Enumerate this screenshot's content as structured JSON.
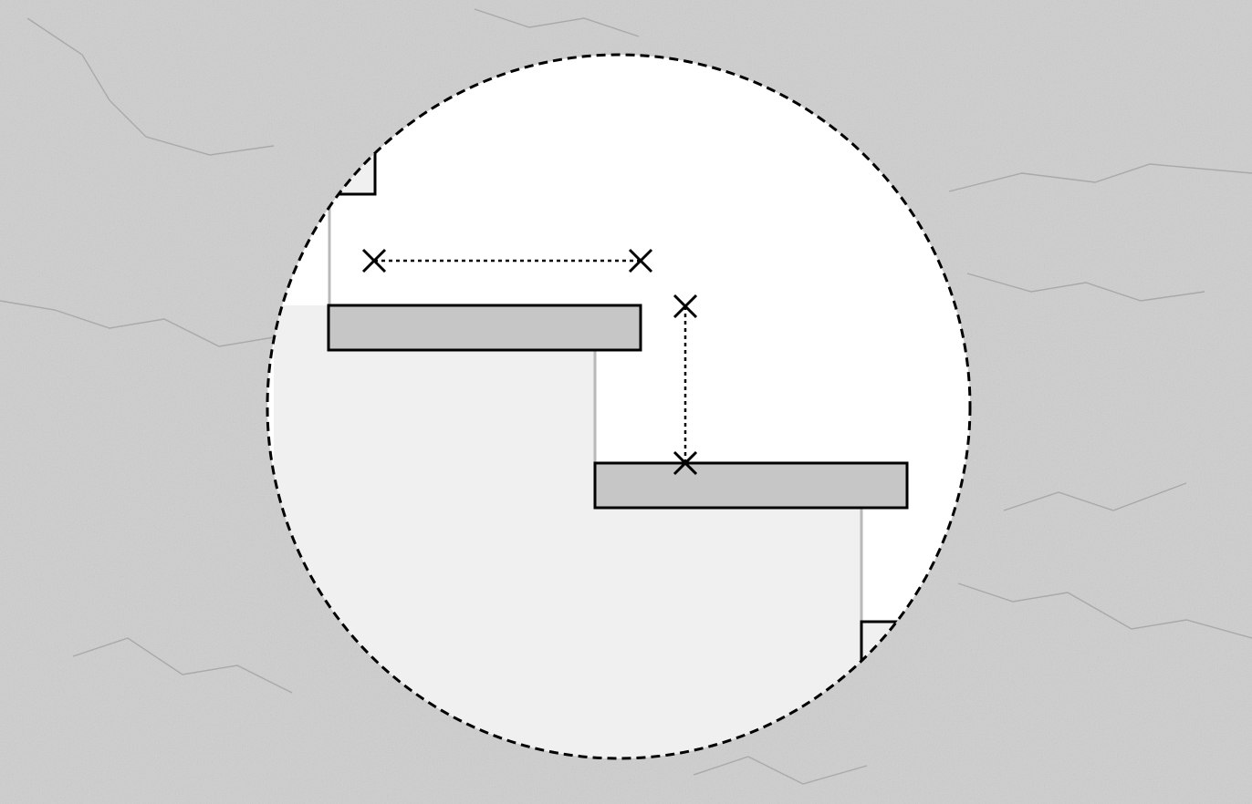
{
  "colors": {
    "background": "#cfcfcf",
    "background_texture": "concrete",
    "lens_fill": "#ffffff",
    "staircase_fill": "#f0f0f0",
    "tread_fill": "#c6c6c6",
    "outline": "#000000",
    "riser_line": "#b9b9b9"
  },
  "icons": {
    "dimension_marker": "cross-marker-icon"
  },
  "diagram": {
    "type": "staircase-detail",
    "lens_border": "dashed",
    "dimension_line_style": "dotted",
    "dimensions": [
      {
        "name": "tread-depth",
        "orientation": "horizontal",
        "label": ""
      },
      {
        "name": "riser-height",
        "orientation": "vertical",
        "label": ""
      }
    ]
  }
}
